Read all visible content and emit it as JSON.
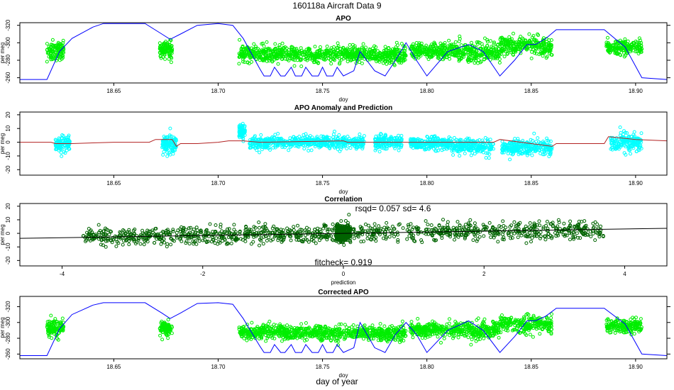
{
  "figure": {
    "title": "160118a   Aircraft Data 9",
    "footer_label": "day of year"
  },
  "colors": {
    "green_points": "#00ee00",
    "cyan_points": "#00ffff",
    "darkgreen_points": "#006400",
    "blue_line": "#0000ff",
    "red_line": "#b22222",
    "black_line": "#000000"
  },
  "chart_data": [
    {
      "id": "apo",
      "type": "scatter",
      "title": "APO",
      "xlabel": "doy",
      "ylabel": "per meg",
      "xlim": [
        18.605,
        18.915
      ],
      "ylim": [
        -323,
        -254
      ],
      "y_reversed": true,
      "xticks": [
        18.65,
        18.7,
        18.75,
        18.8,
        18.85,
        18.9
      ],
      "xtick_labels": [
        "18.65",
        "18.70",
        "18.75",
        "18.80",
        "18.85",
        "18.90"
      ],
      "yticks": [
        -260,
        -280,
        -300,
        -320
      ],
      "ytick_labels": [
        "-260",
        "-280",
        "-300",
        "-320"
      ],
      "right_ticks": [
        -260,
        -280,
        -300,
        -320
      ],
      "points_color": "green",
      "clusters": [
        {
          "x": [
            18.618,
            18.626
          ],
          "y": -290,
          "sd": 10
        },
        {
          "x": [
            18.672,
            18.678
          ],
          "y": -292,
          "sd": 9
        },
        {
          "x": [
            18.71,
            18.732
          ],
          "y": -288,
          "sd": 8
        },
        {
          "x": [
            18.732,
            18.775
          ],
          "y": -287,
          "sd": 8
        },
        {
          "x": [
            18.775,
            18.79
          ],
          "y": -286,
          "sd": 9
        },
        {
          "x": [
            18.792,
            18.815
          ],
          "y": -291,
          "sd": 8
        },
        {
          "x": [
            18.815,
            18.835
          ],
          "y": -289,
          "sd": 10
        },
        {
          "x": [
            18.835,
            18.86
          ],
          "y": -297,
          "sd": 10
        },
        {
          "x": [
            18.886,
            18.903
          ],
          "y": -295,
          "sd": 8
        }
      ],
      "blue_line": {
        "x": [
          18.605,
          18.618,
          18.624,
          18.63,
          18.64,
          18.645,
          18.665,
          18.673,
          18.677,
          18.682,
          18.69,
          18.7,
          18.707,
          18.712,
          18.72,
          18.722,
          18.725,
          18.727,
          18.73,
          18.732,
          18.735,
          18.737,
          18.74,
          18.742,
          18.745,
          18.748,
          18.75,
          18.752,
          18.755,
          18.757,
          18.76,
          18.765,
          18.768,
          18.775,
          18.78,
          18.785,
          18.79,
          18.795,
          18.8,
          18.81,
          18.82,
          18.827,
          18.835,
          18.842,
          18.848,
          18.852,
          18.857,
          18.862,
          18.885,
          18.895,
          18.903,
          18.915
        ],
        "y": [
          -258,
          -258,
          -290,
          -305,
          -318,
          -322,
          -322,
          -310,
          -304,
          -310,
          -320,
          -322,
          -320,
          -305,
          -270,
          -262,
          -262,
          -272,
          -262,
          -262,
          -272,
          -262,
          -262,
          -272,
          -262,
          -262,
          -272,
          -262,
          -262,
          -272,
          -262,
          -268,
          -290,
          -268,
          -262,
          -280,
          -300,
          -280,
          -262,
          -290,
          -298,
          -290,
          -262,
          -280,
          -298,
          -298,
          -305,
          -315,
          -315,
          -295,
          -260,
          -258
        ]
      }
    },
    {
      "id": "anomaly",
      "type": "scatter",
      "title": "APO Anomaly and Prediction",
      "xlabel": "doy",
      "ylabel": "per meg",
      "xlim": [
        18.605,
        18.915
      ],
      "ylim": [
        -24,
        22
      ],
      "xticks": [
        18.65,
        18.7,
        18.75,
        18.8,
        18.85,
        18.9
      ],
      "xtick_labels": [
        "18.65",
        "18.70",
        "18.75",
        "18.80",
        "18.85",
        "18.90"
      ],
      "yticks": [
        -20,
        -10,
        0,
        10,
        20
      ],
      "ytick_labels": [
        "-20",
        "-10",
        "0",
        "10",
        "20"
      ],
      "points_color": "cyan",
      "clusters": [
        {
          "x": [
            18.622,
            18.629
          ],
          "y": -2,
          "sd": 5
        },
        {
          "x": [
            18.673,
            18.68
          ],
          "y": -2,
          "sd": 7
        },
        {
          "x": [
            18.71,
            18.713
          ],
          "y": 8,
          "sd": 4
        },
        {
          "x": [
            18.715,
            18.735
          ],
          "y": 0,
          "sd": 4
        },
        {
          "x": [
            18.735,
            18.77
          ],
          "y": 0,
          "sd": 4
        },
        {
          "x": [
            18.775,
            18.788
          ],
          "y": 0,
          "sd": 5
        },
        {
          "x": [
            18.792,
            18.812
          ],
          "y": -1,
          "sd": 4
        },
        {
          "x": [
            18.812,
            18.832
          ],
          "y": -3,
          "sd": 5
        },
        {
          "x": [
            18.836,
            18.86
          ],
          "y": -4,
          "sd": 5
        },
        {
          "x": [
            18.888,
            18.903
          ],
          "y": 0,
          "sd": 6
        }
      ],
      "red_line": {
        "x": [
          18.605,
          18.62,
          18.622,
          18.63,
          18.65,
          18.667,
          18.67,
          18.678,
          18.68,
          18.682,
          18.69,
          18.7,
          18.705,
          18.712,
          18.72,
          18.76,
          18.762,
          18.79,
          18.793,
          18.812,
          18.815,
          18.832,
          18.835,
          18.86,
          18.862,
          18.885,
          18.887,
          18.9,
          18.915
        ],
        "y": [
          0,
          0,
          -1,
          -1,
          0,
          0,
          2,
          2,
          -3,
          -1,
          -1,
          0,
          1,
          1,
          0,
          1,
          0,
          0,
          0,
          0,
          0,
          0,
          2,
          -3,
          -1,
          -1,
          4,
          2,
          1
        ]
      }
    },
    {
      "id": "correlation",
      "type": "scatter",
      "title": "Correlation",
      "xlabel": "prediction",
      "ylabel": "per meg",
      "xlim": [
        -4.6,
        4.6
      ],
      "ylim": [
        -24,
        22
      ],
      "xticks": [
        -4,
        -2,
        0,
        2,
        4
      ],
      "xtick_labels": [
        "-4",
        "-2",
        "0",
        "2",
        "4"
      ],
      "yticks": [
        -20,
        -10,
        0,
        10,
        20
      ],
      "ytick_labels": [
        "-20",
        "-10",
        "0",
        "10",
        "20"
      ],
      "points_color": "darkgreen",
      "annotation_top": "rsqd= 0.057 sd= 4.6",
      "annotation_bottom": "fitcheck= 0.919",
      "fit_line": {
        "x": [
          -4.6,
          4.6
        ],
        "y": [
          -3.7,
          3.7
        ]
      },
      "spread_x": [
        -3.7,
        3.7
      ]
    },
    {
      "id": "corrected",
      "type": "scatter",
      "title": "Corrected APO",
      "xlabel": "doy",
      "ylabel": "per meg",
      "xlim": [
        18.605,
        18.915
      ],
      "ylim": [
        -333,
        -254
      ],
      "y_reversed": true,
      "xticks": [
        18.65,
        18.7,
        18.75,
        18.8,
        18.85,
        18.9
      ],
      "xtick_labels": [
        "18.65",
        "18.70",
        "18.75",
        "18.80",
        "18.85",
        "18.90"
      ],
      "yticks": [
        -260,
        -280,
        -300,
        -320
      ],
      "ytick_labels": [
        "-260",
        "-280",
        "-300",
        "-320"
      ],
      "right_ticks": [
        -260,
        -280,
        -300,
        -320
      ],
      "points_color": "green",
      "clusters": [
        {
          "x": [
            18.618,
            18.626
          ],
          "y": -292,
          "sd": 9
        },
        {
          "x": [
            18.672,
            18.678
          ],
          "y": -292,
          "sd": 9
        },
        {
          "x": [
            18.71,
            18.732
          ],
          "y": -288,
          "sd": 8
        },
        {
          "x": [
            18.732,
            18.775
          ],
          "y": -287,
          "sd": 8
        },
        {
          "x": [
            18.775,
            18.79
          ],
          "y": -286,
          "sd": 9
        },
        {
          "x": [
            18.792,
            18.815
          ],
          "y": -291,
          "sd": 8
        },
        {
          "x": [
            18.815,
            18.835
          ],
          "y": -290,
          "sd": 10
        },
        {
          "x": [
            18.835,
            18.86
          ],
          "y": -298,
          "sd": 10
        },
        {
          "x": [
            18.886,
            18.903
          ],
          "y": -296,
          "sd": 8
        }
      ],
      "blue_line": {
        "x": [
          18.605,
          18.618,
          18.624,
          18.63,
          18.64,
          18.645,
          18.665,
          18.673,
          18.677,
          18.682,
          18.69,
          18.7,
          18.707,
          18.712,
          18.72,
          18.722,
          18.725,
          18.727,
          18.73,
          18.732,
          18.735,
          18.737,
          18.74,
          18.742,
          18.745,
          18.748,
          18.75,
          18.752,
          18.755,
          18.757,
          18.76,
          18.765,
          18.768,
          18.775,
          18.78,
          18.785,
          18.79,
          18.795,
          18.8,
          18.81,
          18.82,
          18.827,
          18.835,
          18.842,
          18.848,
          18.852,
          18.857,
          18.862,
          18.885,
          18.895,
          18.903,
          18.915
        ],
        "y": [
          -258,
          -258,
          -292,
          -310,
          -322,
          -325,
          -325,
          -312,
          -305,
          -312,
          -324,
          -325,
          -323,
          -305,
          -270,
          -262,
          -262,
          -272,
          -262,
          -262,
          -272,
          -262,
          -262,
          -272,
          -262,
          -262,
          -272,
          -262,
          -262,
          -272,
          -262,
          -268,
          -300,
          -268,
          -262,
          -285,
          -300,
          -285,
          -262,
          -290,
          -302,
          -290,
          -262,
          -282,
          -302,
          -302,
          -308,
          -318,
          -318,
          -298,
          -260,
          -258
        ]
      }
    }
  ]
}
